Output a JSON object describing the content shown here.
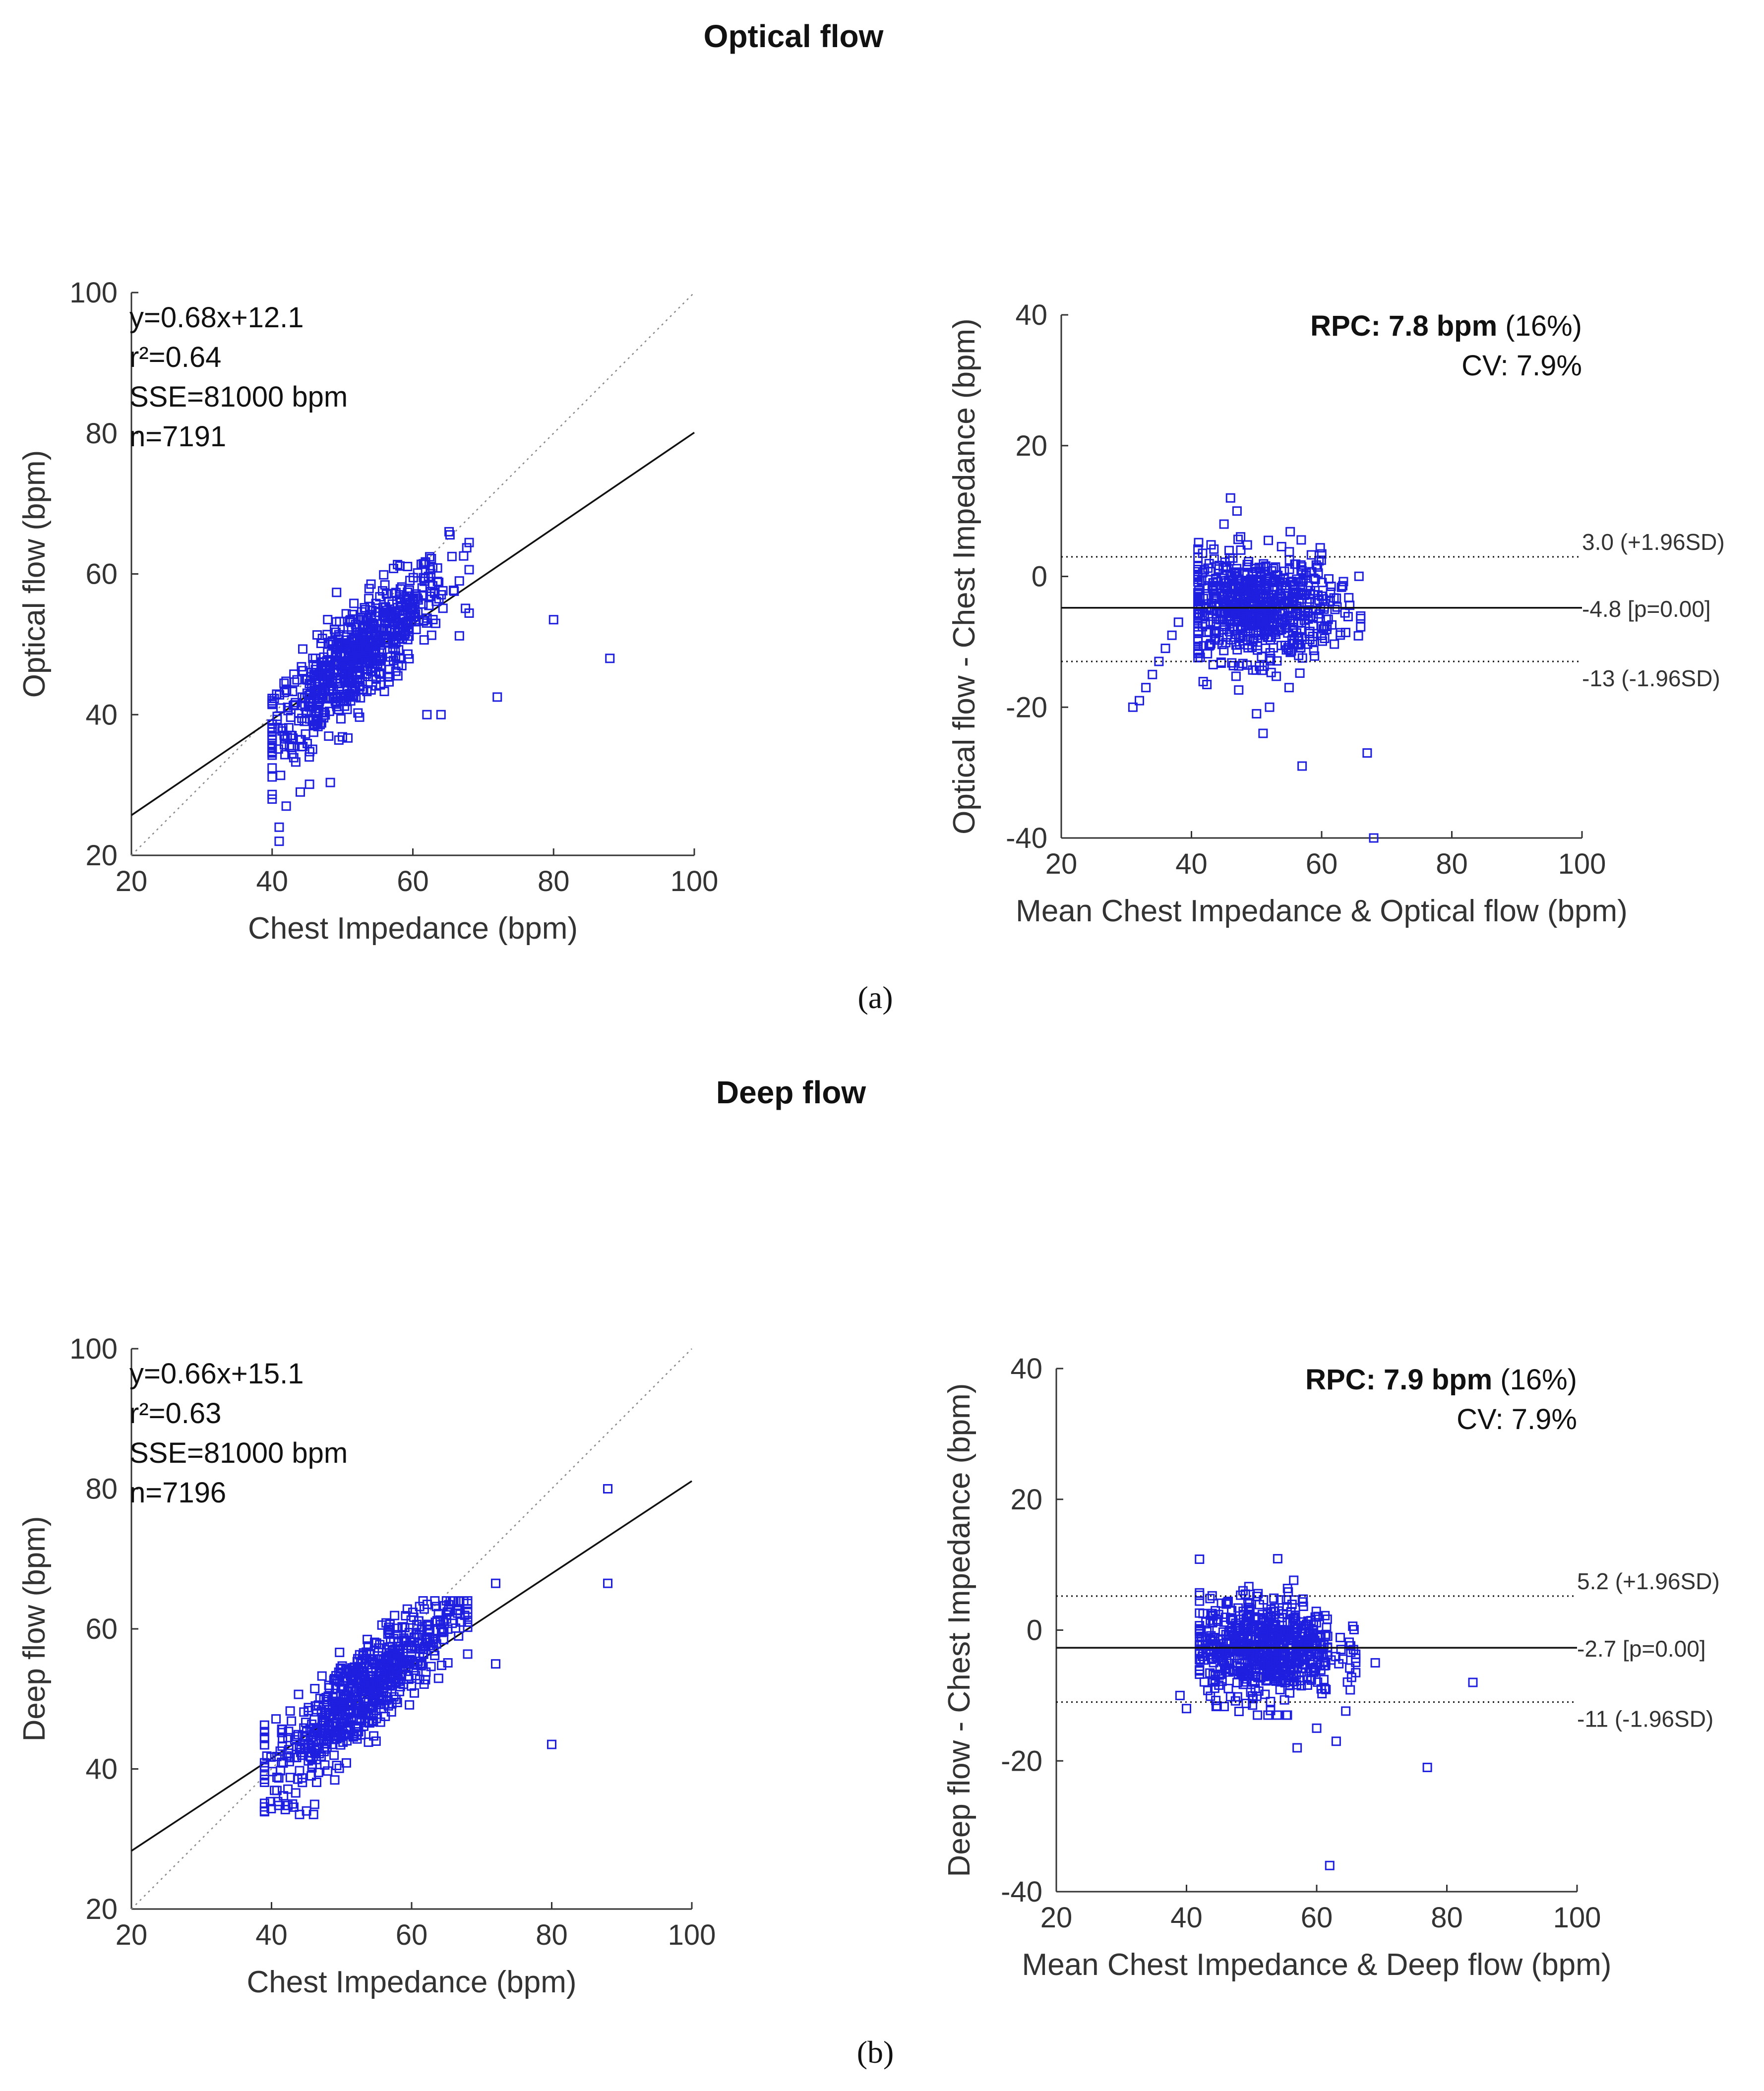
{
  "figure_title_a": "Optical flow",
  "figure_title_b": "Deep flow",
  "caption_a": "(a)",
  "caption_b": "(b)",
  "colors": {
    "marker": "#1f1fe0",
    "line": "#111111",
    "text": "#333333",
    "axis": "#333333"
  },
  "chart_data": [
    {
      "id": "a-regression",
      "type": "scatter",
      "xlabel": "Chest Impedance (bpm)",
      "ylabel": "Optical flow (bpm)",
      "xlim": [
        20,
        100
      ],
      "ylim": [
        20,
        100
      ],
      "xticks": [
        "20",
        "40",
        "60",
        "80",
        "100"
      ],
      "yticks": [
        "20",
        "40",
        "60",
        "80",
        "100"
      ],
      "stats": [
        "y=0.68x+12.1",
        "r²=0.64",
        "SSE=81000 bpm",
        "n=7191"
      ],
      "fit": {
        "slope": 0.68,
        "intercept": 12.1
      },
      "identity_line": true,
      "cloud": {
        "xMean": 52,
        "yMean": 48,
        "xSd": 6.5,
        "slope": 0.85,
        "resid": 3.6,
        "count": 700,
        "xMin": 40,
        "xMax": 68,
        "yMin": 21,
        "yMax": 66
      },
      "outliers": [
        [
          80,
          53.5
        ],
        [
          88,
          48
        ],
        [
          72,
          42.5
        ],
        [
          62,
          40
        ],
        [
          64,
          40
        ],
        [
          41,
          22
        ],
        [
          41,
          24
        ],
        [
          40,
          28
        ],
        [
          42,
          27
        ],
        [
          44,
          29
        ]
      ]
    },
    {
      "id": "a-blandaltman",
      "type": "scatter",
      "xlabel": "Mean Chest Impedance & Optical flow (bpm)",
      "ylabel": "Optical flow - Chest Impedance (bpm)",
      "xlim": [
        20,
        100
      ],
      "ylim": [
        -40,
        40
      ],
      "xticks": [
        "20",
        "40",
        "60",
        "80",
        "100"
      ],
      "yticks": [
        "-40",
        "-20",
        "0",
        "20",
        "40"
      ],
      "rpc_label": "RPC: 7.8 bpm",
      "rpc_pct": "(16%)",
      "cv": "CV: 7.9%",
      "mean_diff": -4.8,
      "upper_loa": 3.0,
      "lower_loa": -13,
      "mean_label": "-4.8 [p=0.00]",
      "upper_label": "3.0 (+1.96SD)",
      "lower_label": "-13 (-1.96SD)",
      "cloud": {
        "xMean": 50,
        "yMean": -4.8,
        "xSd": 6,
        "slope": 0,
        "resid": 4,
        "count": 700,
        "xMin": 41,
        "xMax": 66,
        "yMin": -18,
        "yMax": 12
      },
      "outliers": [
        [
          31,
          -20
        ],
        [
          32,
          -19
        ],
        [
          33,
          -17
        ],
        [
          34,
          -15
        ],
        [
          35,
          -13
        ],
        [
          36,
          -11
        ],
        [
          37,
          -9
        ],
        [
          38,
          -7
        ],
        [
          46,
          12
        ],
        [
          47,
          10
        ],
        [
          45,
          8
        ],
        [
          50,
          -21
        ],
        [
          51,
          -24
        ],
        [
          57,
          -29
        ],
        [
          67,
          -27
        ],
        [
          68,
          -40
        ],
        [
          52,
          -20
        ],
        [
          55,
          -17
        ]
      ]
    },
    {
      "id": "b-regression",
      "type": "scatter",
      "xlabel": "Chest Impedance (bpm)",
      "ylabel": "Deep flow (bpm)",
      "xlim": [
        20,
        100
      ],
      "ylim": [
        20,
        100
      ],
      "xticks": [
        "20",
        "40",
        "60",
        "80",
        "100"
      ],
      "yticks": [
        "20",
        "40",
        "60",
        "80",
        "100"
      ],
      "stats": [
        "y=0.66x+15.1",
        "r²=0.63",
        "SSE=81000 bpm",
        "n=7196"
      ],
      "fit": {
        "slope": 0.66,
        "intercept": 15.1
      },
      "identity_line": true,
      "cloud": {
        "xMean": 53,
        "yMean": 51,
        "xSd": 6.5,
        "slope": 0.85,
        "resid": 3.4,
        "count": 700,
        "xMin": 39,
        "xMax": 68,
        "yMin": 33,
        "yMax": 64
      },
      "outliers": [
        [
          88,
          80
        ],
        [
          88,
          66.5
        ],
        [
          72,
          66.5
        ],
        [
          72,
          55
        ],
        [
          80,
          43.5
        ],
        [
          44,
          33.5
        ],
        [
          45,
          34
        ],
        [
          46,
          33.5
        ],
        [
          43,
          35
        ]
      ]
    },
    {
      "id": "b-blandaltman",
      "type": "scatter",
      "xlabel": "Mean Chest Impedance & Deep flow (bpm)",
      "ylabel": "Deep flow - Chest Impedance (bpm)",
      "xlim": [
        20,
        100
      ],
      "ylim": [
        -40,
        40
      ],
      "xticks": [
        "20",
        "40",
        "60",
        "80",
        "100"
      ],
      "yticks": [
        "-40",
        "-20",
        "0",
        "20",
        "40"
      ],
      "rpc_label": "RPC: 7.9 bpm",
      "rpc_pct": "(16%)",
      "cv": "CV: 7.9%",
      "mean_diff": -2.7,
      "upper_loa": 5.2,
      "lower_loa": -11,
      "mean_label": "-2.7 [p=0.00]",
      "upper_label": "5.2 (+1.96SD)",
      "lower_label": "-11 (-1.96SD)",
      "cloud": {
        "xMean": 52,
        "yMean": -2.7,
        "xSd": 5.5,
        "slope": 0,
        "resid": 3.8,
        "count": 700,
        "xMin": 42,
        "xMax": 66,
        "yMin": -13,
        "yMax": 14
      },
      "outliers": [
        [
          84,
          -8
        ],
        [
          77,
          -21
        ],
        [
          62,
          -36
        ],
        [
          69,
          -5
        ],
        [
          57,
          -18
        ],
        [
          60,
          -15
        ],
        [
          63,
          -17
        ],
        [
          39,
          -10
        ],
        [
          40,
          -12
        ]
      ]
    }
  ]
}
